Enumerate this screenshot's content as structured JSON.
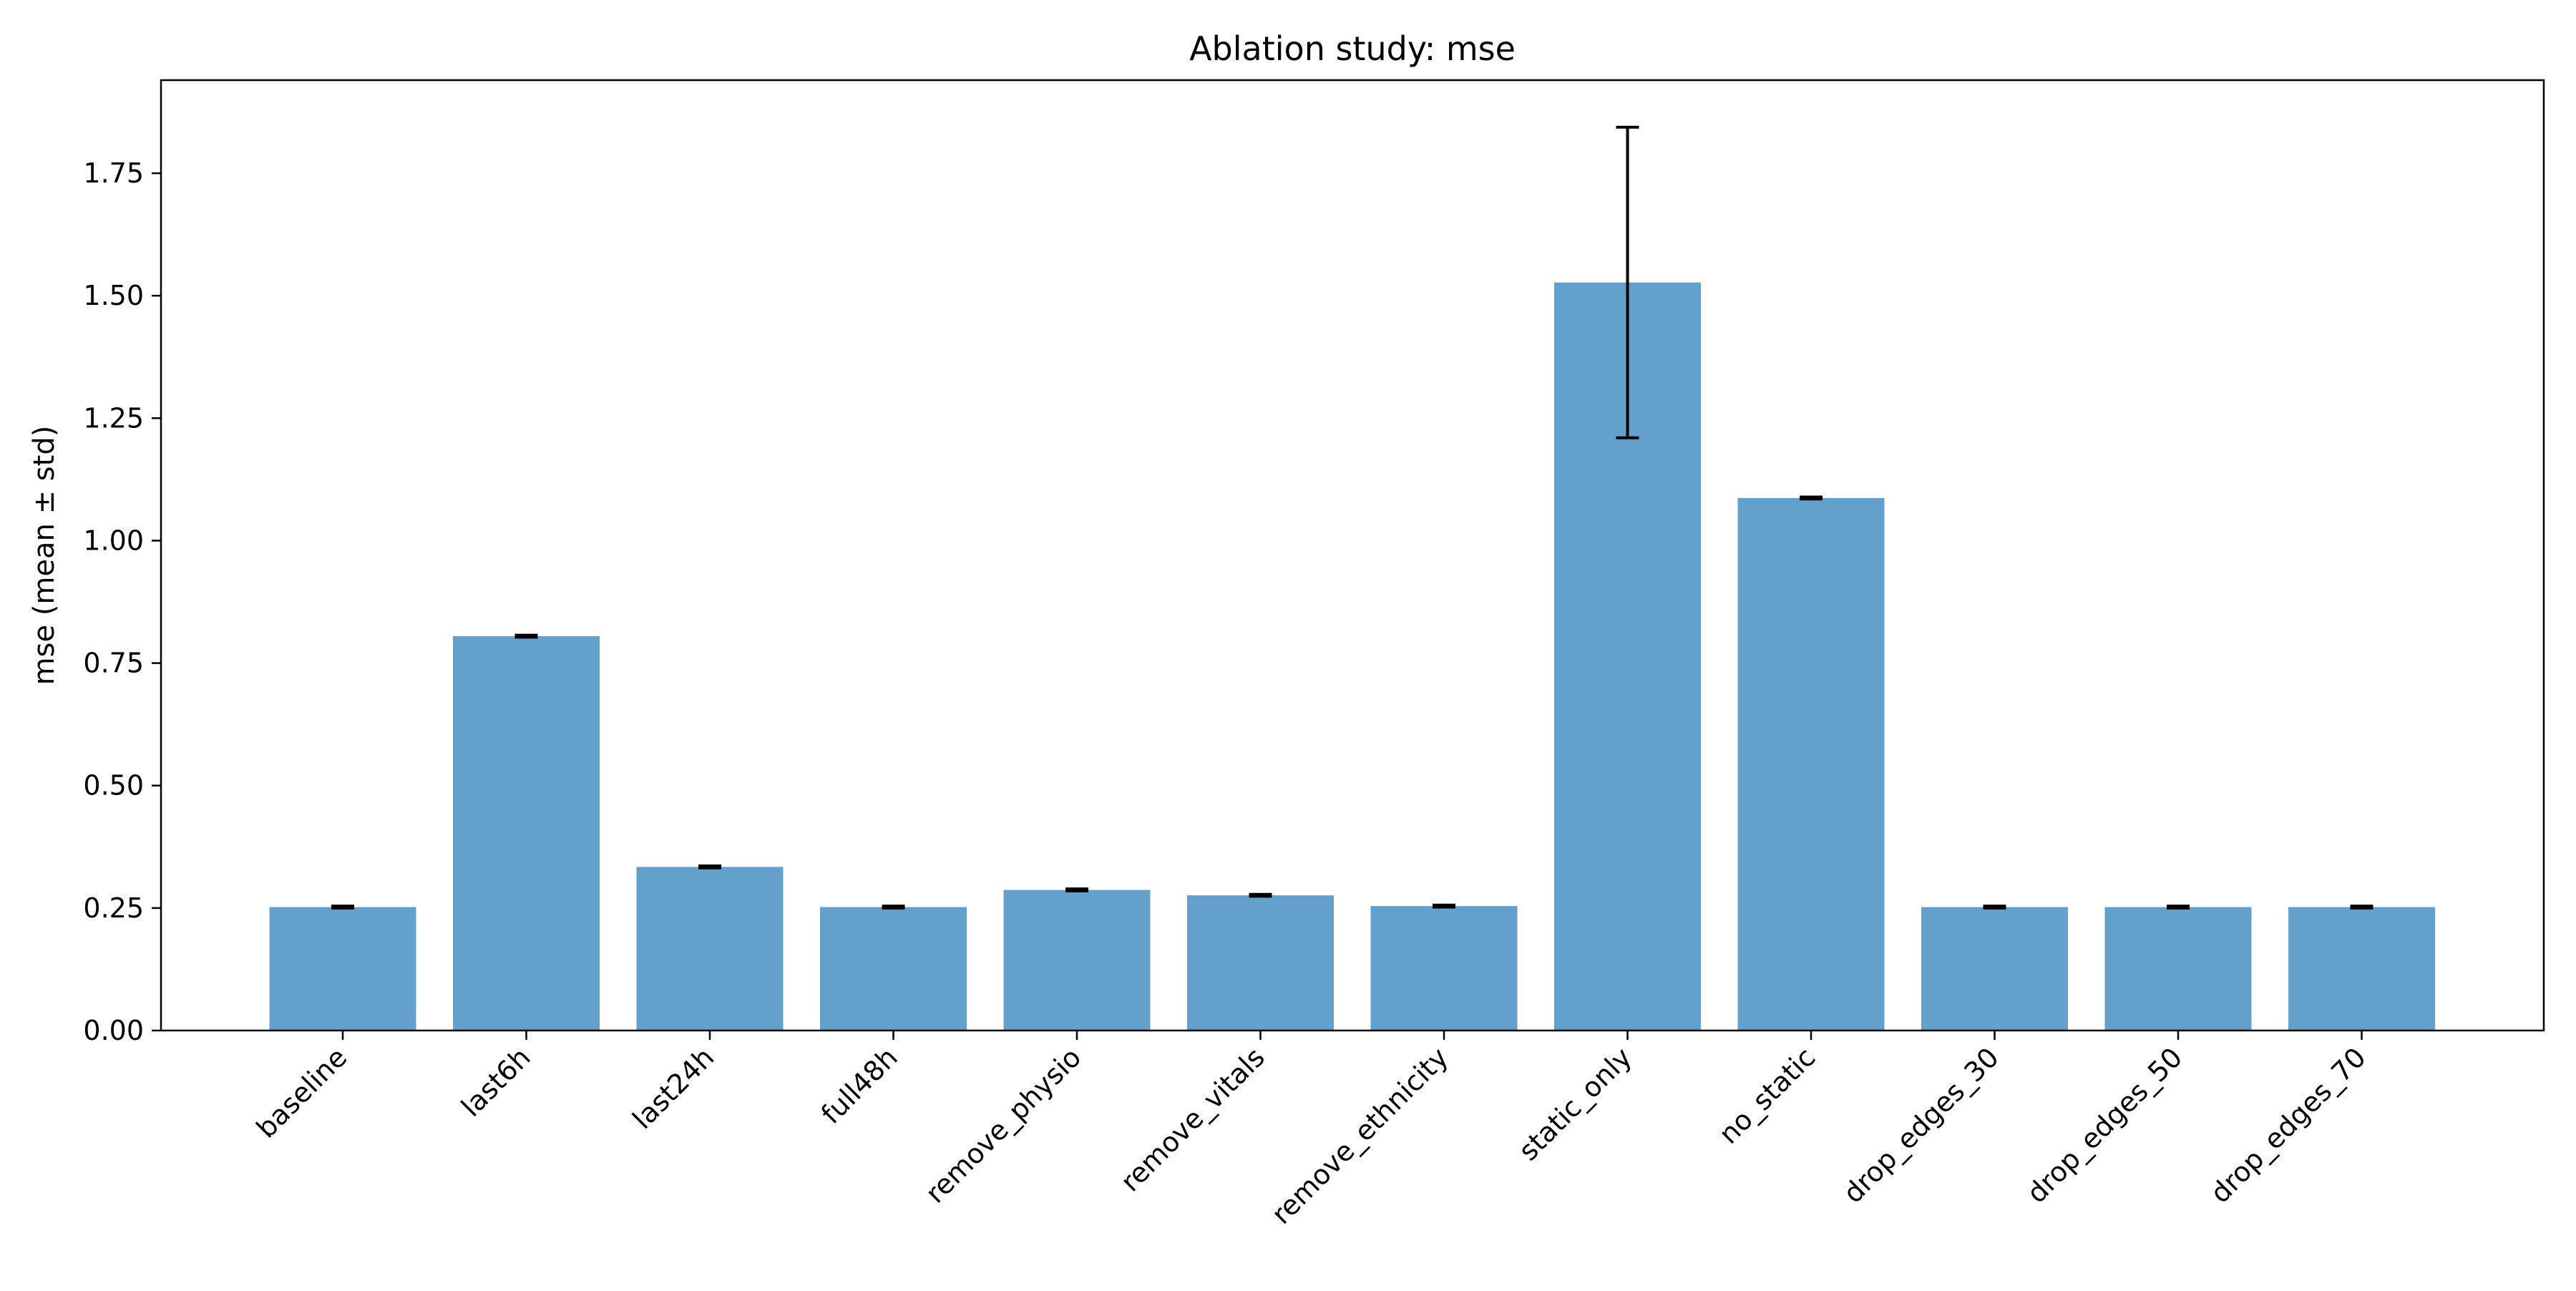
{
  "chart_data": {
    "type": "bar",
    "title": "Ablation study: mse",
    "xlabel": "",
    "ylabel": "mse (mean ± std)",
    "ylim": [
      0,
      1.94
    ],
    "yticks": [
      0.0,
      0.25,
      0.5,
      0.75,
      1.0,
      1.25,
      1.5,
      1.75
    ],
    "ytick_labels": [
      "0.00",
      "0.25",
      "0.50",
      "0.75",
      "1.00",
      "1.25",
      "1.50",
      "1.75"
    ],
    "categories": [
      "baseline",
      "last6h",
      "last24h",
      "full48h",
      "remove_physio",
      "remove_vitals",
      "remove_ethnicity",
      "static_only",
      "no_static",
      "drop_edges_30",
      "drop_edges_50",
      "drop_edges_70"
    ],
    "values": [
      0.252,
      0.805,
      0.334,
      0.252,
      0.287,
      0.276,
      0.254,
      1.527,
      1.087,
      0.252,
      0.252,
      0.252
    ],
    "errors": [
      0.002,
      0.002,
      0.002,
      0.002,
      0.002,
      0.002,
      0.002,
      0.317,
      0.002,
      0.002,
      0.002,
      0.002
    ],
    "bar_color": "#63a0cb",
    "error_color": "#000000",
    "grid": false,
    "legend": "none"
  }
}
